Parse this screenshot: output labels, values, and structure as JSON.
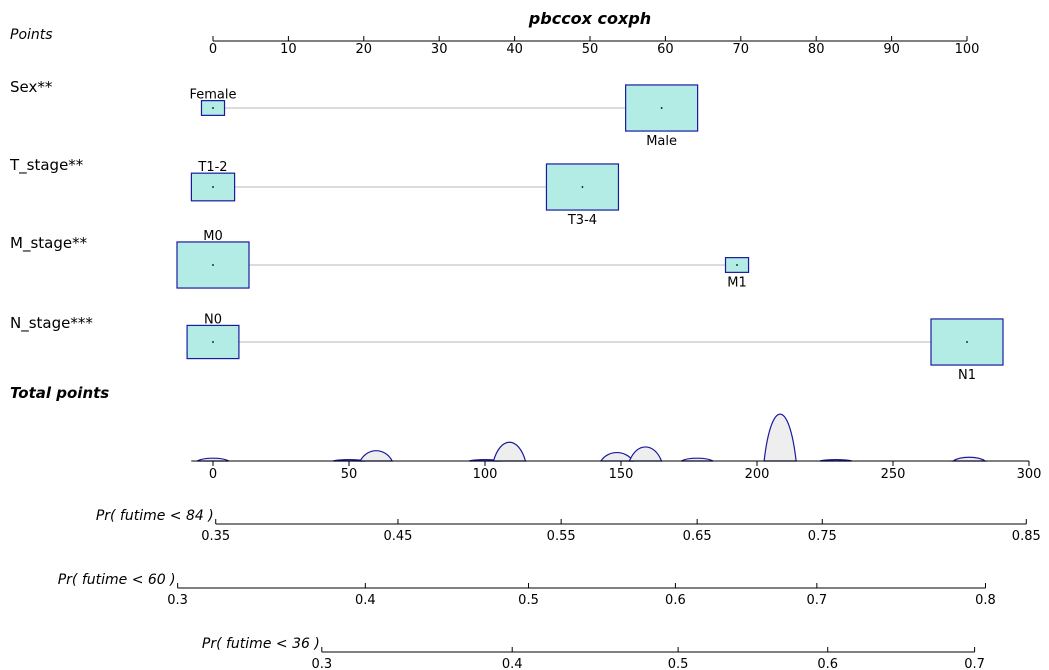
{
  "chart_data": {
    "type": "nomogram",
    "title": "pbccox coxph",
    "box_fill": "#b2ece4",
    "box_stroke": "#1a1aa0",
    "density_fill": "#eeeeee",
    "density_stroke": "#1a1aa0",
    "points_axis": {
      "label": "Points",
      "range": [
        0,
        100
      ],
      "ticks": [
        0,
        10,
        20,
        30,
        40,
        50,
        60,
        70,
        80,
        90,
        100
      ]
    },
    "variables": [
      {
        "label": "Sex**",
        "levels": [
          {
            "name": "Female",
            "points": 0,
            "weight": 0.32,
            "label_pos": "above"
          },
          {
            "name": "Male",
            "points": 59.5,
            "weight": 1.0,
            "label_pos": "below"
          }
        ]
      },
      {
        "label": "T_stage**",
        "levels": [
          {
            "name": "T1-2",
            "points": 0,
            "weight": 0.6,
            "label_pos": "above"
          },
          {
            "name": "T3-4",
            "points": 49,
            "weight": 1.0,
            "label_pos": "below"
          }
        ]
      },
      {
        "label": "M_stage**",
        "levels": [
          {
            "name": "M0",
            "points": 0,
            "weight": 1.0,
            "label_pos": "above"
          },
          {
            "name": "M1",
            "points": 69.5,
            "weight": 0.32,
            "label_pos": "below"
          }
        ]
      },
      {
        "label": "N_stage***",
        "levels": [
          {
            "name": "N0",
            "points": 0,
            "weight": 0.72,
            "label_pos": "above"
          },
          {
            "name": "N1",
            "points": 100,
            "weight": 1.0,
            "label_pos": "below"
          }
        ]
      }
    ],
    "total_points": {
      "label": "Total points",
      "range": [
        -8,
        300
      ],
      "ticks": [
        0,
        50,
        100,
        150,
        200,
        250,
        300
      ],
      "density": [
        {
          "center": 0,
          "height": 0.06
        },
        {
          "center": 50,
          "height": 0.03
        },
        {
          "center": 60,
          "height": 0.22
        },
        {
          "center": 100,
          "height": 0.03
        },
        {
          "center": 109,
          "height": 0.4
        },
        {
          "center": 148.5,
          "height": 0.18
        },
        {
          "center": 159,
          "height": 0.3
        },
        {
          "center": 178,
          "height": 0.06
        },
        {
          "center": 208.5,
          "height": 1.0
        },
        {
          "center": 229,
          "height": 0.03
        },
        {
          "center": 278,
          "height": 0.08
        }
      ]
    },
    "probability_axes": [
      {
        "label": "Pr( futime < 84 )",
        "ticks": [
          0.35,
          0.45,
          0.55,
          0.65,
          0.75,
          0.85
        ],
        "tick_total_points": [
          1,
          68,
          128,
          178,
          224,
          299
        ]
      },
      {
        "label": "Pr( futime < 60 )",
        "ticks": [
          0.3,
          0.4,
          0.5,
          0.6,
          0.7,
          0.8
        ],
        "tick_total_points": [
          -13,
          56,
          116,
          170,
          222,
          284
        ]
      },
      {
        "label": "Pr( futime < 36 )",
        "ticks": [
          0.3,
          0.4,
          0.5,
          0.6,
          0.7
        ],
        "tick_total_points": [
          40,
          110,
          171,
          226,
          280
        ]
      }
    ]
  }
}
